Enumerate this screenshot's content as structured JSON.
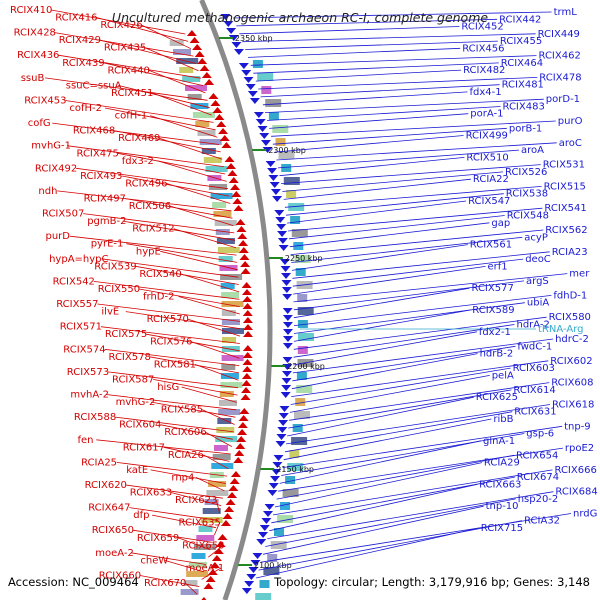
{
  "title": "Uncultured methanogenic archaeon RC-I, complete genome",
  "footer": {
    "accession": "Accession: NC_009464",
    "topology": "Topology: circular; Length: 3,179,916 bp; Genes: 3,148"
  },
  "colors": {
    "reverse_strand": "#d40000",
    "forward_strand": "#1a1ad4",
    "rna": "#33aacc",
    "backbone": "#808080",
    "tick": "#228822"
  },
  "kbp_ticks": [
    "2350 kbp",
    "2300 kbp",
    "2250 kbp",
    "2200 kbp",
    "2150 kbp",
    "2100 kbp"
  ],
  "left_labels": [
    "RCIX410",
    "RCIX416",
    "RCIX426",
    "RCIX428",
    "RCIX429",
    "RCIX435",
    "RCIX436",
    "RCIX439",
    "RCIX440",
    "ssuB",
    "ssuC=ssuA",
    "RCIX451",
    "RCIX453",
    "cofH-2",
    "cofH-1",
    "cofG",
    "RCIX468",
    "RCIX469",
    "mvhG-1",
    "RCIX475",
    "fdx3-2",
    "RCIX492",
    "RCIX493",
    "RCIX496",
    "ndh",
    "RCIX497",
    "RCIX506",
    "RCIX507",
    "pgmB-2",
    "RCIX512",
    "purD",
    "pyrE-1",
    "hypE",
    "hypA=hypC",
    "RCIX539",
    "RCIX540",
    "RCIX542",
    "RCIX550",
    "frhD-2",
    "RCIX557",
    "ilvE",
    "RCIX570",
    "RCIX571",
    "RCIX575",
    "RCIX576",
    "RCIX574",
    "RCIX578",
    "RCIX581",
    "RCIX573",
    "RCIX587",
    "hisG",
    "mvhA-2",
    "mvhG-2",
    "RCIX585",
    "RCIX588",
    "RCIX604",
    "RCIX606",
    "fen",
    "RCIX617",
    "RCIA26",
    "RCIA25",
    "katE",
    "rnp4",
    "RCIX620",
    "RCIX633",
    "RCIX623",
    "RCIX647",
    "dfp",
    "RCIX635",
    "RCIX650",
    "RCIX659",
    "RCIX658",
    "moeA-2",
    "cheW",
    "moeA-1",
    "RCIX660",
    "RCIX670"
  ],
  "right_labels": [
    "trmL",
    "RCIX442",
    "RCIX452",
    "RCIX449",
    "RCIX455",
    "RCIX456",
    "RCIX462",
    "RCIX464",
    "RCIX482",
    "RCIX478",
    "RCIX481",
    "fdx4-1",
    "porD-1",
    "RCIX483",
    "porA-1",
    "purO",
    "porB-1",
    "RCIX499",
    "aroC",
    "aroA",
    "RCIX510",
    "RCIX531",
    "RCIX526",
    "RCIA22",
    "RCIX515",
    "RCIX538",
    "RCIX547",
    "RCIX541",
    "RCIX548",
    "gap",
    "RCIX562",
    "acyP",
    "RCIX561",
    "RCIA23",
    "deoC",
    "erf1",
    "mer",
    "argS",
    "RCIX577",
    "fdhD-1",
    "ubiA",
    "RCIX589",
    "RCIX580",
    "hdrA-2",
    "fdx2-1",
    "hdrC-2",
    "fwdC-1",
    "hdrB-2",
    "RCIX602",
    "RCIX603",
    "pelA",
    "RCIX608",
    "RCIX614",
    "RCIX625",
    "RCIX618",
    "RCIX631",
    "ribB",
    "tnp-9",
    "gsp-6",
    "glnA-1",
    "rpoE2",
    "RCIX654",
    "RCIA29",
    "RCIX666",
    "RCIX674",
    "RCIX663",
    "RCIX684",
    "hsp20-2",
    "tnp-10",
    "nrdG",
    "RCIA32",
    "RCIX715"
  ],
  "rna_labels": [
    "tRNA-Arg"
  ]
}
